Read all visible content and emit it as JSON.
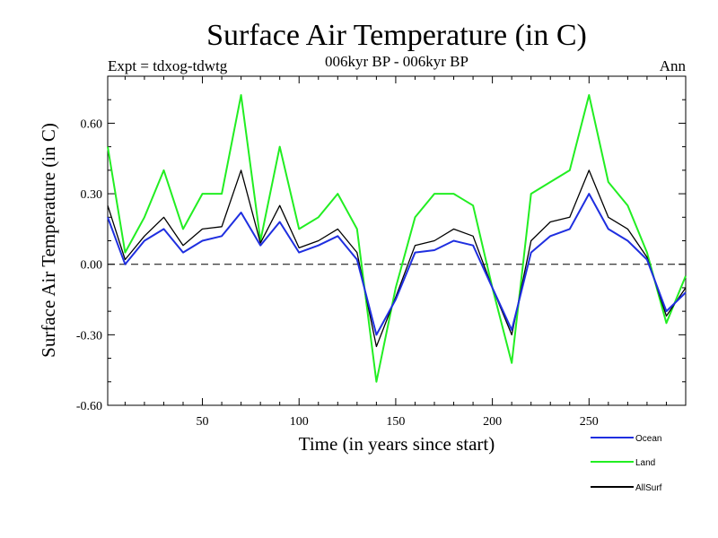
{
  "header": {
    "title": "Surface Air Temperature (in C)",
    "left": "Expt = tdxog-tdwtg",
    "center": "006kyr BP - 006kyr BP",
    "right": "Ann"
  },
  "colors": {
    "Ocean": "#1f2fe0",
    "Land": "#22ee22",
    "AllSurf": "#000000",
    "zeroline": "#000000"
  },
  "chart_data": {
    "type": "line",
    "title": "Surface Air Temperature (in C)",
    "xlabel": "Time (in years since start)",
    "ylabel": "Surface Air Temperature (in C)",
    "xlim": [
      1,
      300
    ],
    "ylim": [
      -0.6,
      0.8
    ],
    "x_ticks": [
      50,
      100,
      150,
      200,
      250
    ],
    "y_ticks": [
      -0.6,
      -0.3,
      0.0,
      0.3,
      0.6
    ],
    "y_tick_labels": [
      "-0.60",
      "-0.30",
      "0.00",
      "0.30",
      "0.60"
    ],
    "zero_line": "dashed",
    "legend_position": "bottom-right outside plot",
    "series": [
      {
        "name": "Ocean",
        "color": "#1f2fe0",
        "x": [
          1,
          10,
          20,
          30,
          40,
          50,
          60,
          70,
          80,
          90,
          100,
          110,
          120,
          130,
          140,
          150,
          160,
          170,
          180,
          190,
          200,
          210,
          220,
          230,
          240,
          250,
          260,
          270,
          280,
          290,
          300
        ],
        "values": [
          0.2,
          0.0,
          0.1,
          0.15,
          0.05,
          0.1,
          0.12,
          0.22,
          0.08,
          0.18,
          0.05,
          0.08,
          0.12,
          0.02,
          -0.3,
          -0.15,
          0.05,
          0.06,
          0.1,
          0.08,
          -0.1,
          -0.28,
          0.05,
          0.12,
          0.15,
          0.3,
          0.15,
          0.1,
          0.02,
          -0.2,
          -0.12
        ]
      },
      {
        "name": "Land",
        "color": "#22ee22",
        "x": [
          1,
          10,
          20,
          30,
          40,
          50,
          60,
          70,
          80,
          90,
          100,
          110,
          120,
          130,
          140,
          150,
          160,
          170,
          180,
          190,
          200,
          210,
          220,
          230,
          240,
          250,
          260,
          270,
          280,
          290,
          300
        ],
        "values": [
          0.5,
          0.05,
          0.2,
          0.4,
          0.15,
          0.3,
          0.3,
          0.72,
          0.1,
          0.5,
          0.15,
          0.2,
          0.3,
          0.15,
          -0.5,
          -0.1,
          0.2,
          0.3,
          0.3,
          0.25,
          -0.1,
          -0.42,
          0.3,
          0.35,
          0.4,
          0.72,
          0.35,
          0.25,
          0.05,
          -0.25,
          -0.05
        ]
      },
      {
        "name": "AllSurf",
        "color": "#000000",
        "x": [
          1,
          10,
          20,
          30,
          40,
          50,
          60,
          70,
          80,
          90,
          100,
          110,
          120,
          130,
          140,
          150,
          160,
          170,
          180,
          190,
          200,
          210,
          220,
          230,
          240,
          250,
          260,
          270,
          280,
          290,
          300
        ],
        "values": [
          0.25,
          0.02,
          0.12,
          0.2,
          0.08,
          0.15,
          0.16,
          0.4,
          0.09,
          0.25,
          0.07,
          0.1,
          0.15,
          0.05,
          -0.35,
          -0.14,
          0.08,
          0.1,
          0.15,
          0.12,
          -0.1,
          -0.3,
          0.1,
          0.18,
          0.2,
          0.4,
          0.2,
          0.15,
          0.03,
          -0.22,
          -0.1
        ]
      }
    ]
  }
}
